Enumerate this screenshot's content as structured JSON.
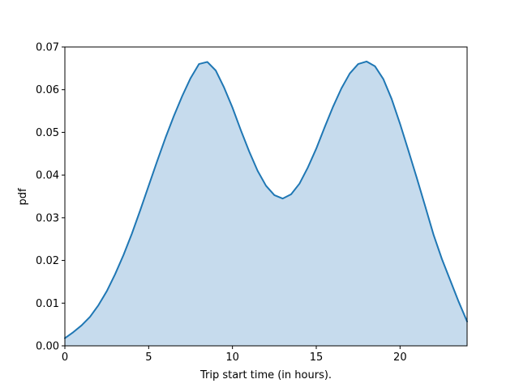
{
  "chart_data": {
    "type": "area",
    "title": "",
    "xlabel": "Trip start time (in hours).",
    "ylabel": "pdf",
    "xlim": [
      0,
      24
    ],
    "ylim": [
      0,
      0.07
    ],
    "grid": false,
    "legend": "none",
    "x_ticks": [
      0,
      5,
      10,
      15,
      20
    ],
    "x_tick_labels": [
      "0",
      "5",
      "10",
      "15",
      "20"
    ],
    "y_ticks": [
      0,
      0.01,
      0.02,
      0.03,
      0.04,
      0.05,
      0.06,
      0.07
    ],
    "y_tick_labels": [
      "0.00",
      "0.01",
      "0.02",
      "0.03",
      "0.04",
      "0.05",
      "0.06",
      "0.07"
    ],
    "line_color": "#1f77b4",
    "fill_color": "#c6dbed",
    "series": [
      {
        "x": [
          0,
          0.5,
          1,
          1.5,
          2,
          2.5,
          3,
          3.5,
          4,
          4.5,
          5,
          5.5,
          6,
          6.5,
          7,
          7.5,
          8,
          8.5,
          9,
          9.5,
          10,
          10.5,
          11,
          11.5,
          12,
          12.5,
          13,
          13.5,
          14,
          14.5,
          15,
          15.5,
          16,
          16.5,
          17,
          17.5,
          18,
          18.5,
          19,
          19.5,
          20,
          20.5,
          21,
          21.5,
          22,
          22.5,
          23,
          23.5,
          24
        ],
        "y": [
          0.0018,
          0.0032,
          0.0048,
          0.0068,
          0.0095,
          0.0128,
          0.0168,
          0.0213,
          0.0263,
          0.0318,
          0.0375,
          0.0432,
          0.0487,
          0.0538,
          0.0585,
          0.0627,
          0.066,
          0.0665,
          0.0645,
          0.0605,
          0.0558,
          0.0505,
          0.0455,
          0.041,
          0.0375,
          0.0353,
          0.0345,
          0.0355,
          0.038,
          0.0418,
          0.0462,
          0.0512,
          0.056,
          0.0603,
          0.0638,
          0.066,
          0.0666,
          0.0655,
          0.0625,
          0.0578,
          0.052,
          0.0457,
          0.0393,
          0.0327,
          0.026,
          0.0203,
          0.0153,
          0.0103,
          0.0057
        ]
      }
    ]
  }
}
